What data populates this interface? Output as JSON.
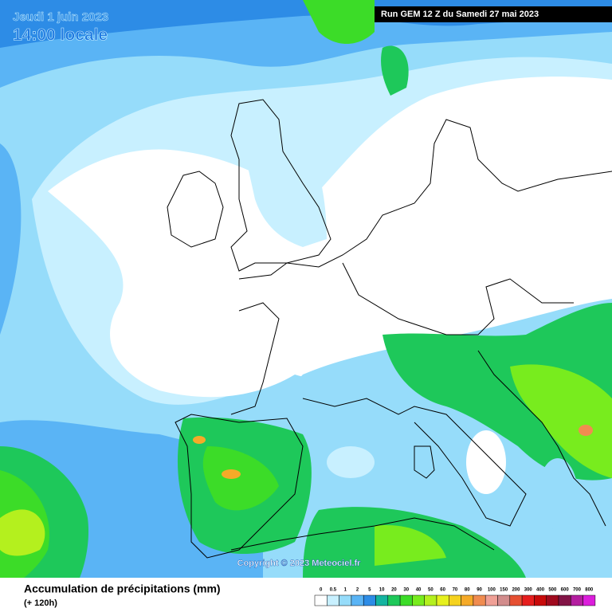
{
  "header": {
    "date": "Jeudi 1 juin 2023",
    "time": "14:00 locale",
    "run": "Run GEM 12 Z du Samedi 27 mai 2023"
  },
  "copyright": "Copyright © 2023 Meteociel.fr",
  "legend": {
    "title": "Accumulation de précipitations (mm)",
    "subtitle": "(+ 120h)",
    "scale": [
      {
        "value": 0,
        "color": "#ffffff"
      },
      {
        "value": 0.5,
        "color": "#c8f0ff"
      },
      {
        "value": 1,
        "color": "#96dcfa"
      },
      {
        "value": 2,
        "color": "#5ab4f5"
      },
      {
        "value": 5,
        "color": "#2d8ce6"
      },
      {
        "value": 10,
        "color": "#14b4a0"
      },
      {
        "value": 20,
        "color": "#1ec85a"
      },
      {
        "value": 30,
        "color": "#3cdc28"
      },
      {
        "value": 40,
        "color": "#78ec1e"
      },
      {
        "value": 50,
        "color": "#b4f01e"
      },
      {
        "value": 60,
        "color": "#e6f01e"
      },
      {
        "value": 70,
        "color": "#f5d21e"
      },
      {
        "value": 80,
        "color": "#f5aa28"
      },
      {
        "value": 90,
        "color": "#f08c50"
      },
      {
        "value": 100,
        "color": "#f0a096"
      },
      {
        "value": 150,
        "color": "#d28c8c"
      },
      {
        "value": 200,
        "color": "#e65032"
      },
      {
        "value": 300,
        "color": "#e61e1e"
      },
      {
        "value": 400,
        "color": "#c80a0a"
      },
      {
        "value": 500,
        "color": "#a00a1e"
      },
      {
        "value": 600,
        "color": "#821446"
      },
      {
        "value": 700,
        "color": "#b41ea0"
      },
      {
        "value": 800,
        "color": "#dc1edc"
      }
    ]
  }
}
